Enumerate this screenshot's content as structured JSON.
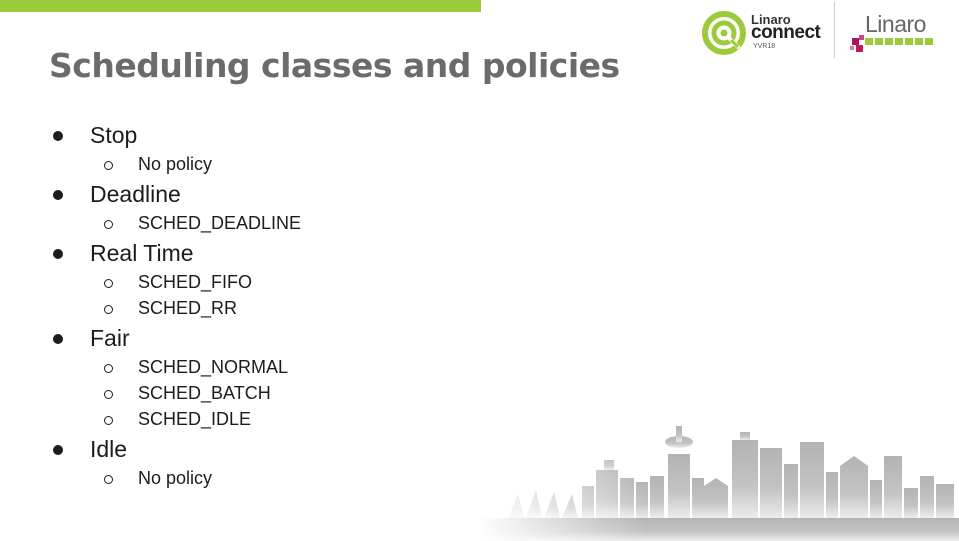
{
  "slide": {
    "title": "Scheduling classes and policies",
    "bullets": [
      {
        "label": "Stop",
        "sub": [
          "No policy"
        ]
      },
      {
        "label": "Deadline",
        "sub": [
          "SCHED_DEADLINE"
        ]
      },
      {
        "label": "Real Time",
        "sub": [
          "SCHED_FIFO",
          "SCHED_RR"
        ]
      },
      {
        "label": "Fair",
        "sub": [
          "SCHED_NORMAL",
          "SCHED_BATCH",
          "SCHED_IDLE"
        ]
      },
      {
        "label": "Idle",
        "sub": [
          "No policy"
        ]
      }
    ]
  },
  "logos": {
    "connect": {
      "word1": "Linaro",
      "word2": "connect",
      "event": "YVR18"
    },
    "linaro": {
      "word": "Linaro"
    }
  },
  "colors": {
    "accent_green": "#9bcb3b",
    "title_gray": "#6b6b6b",
    "linaro_magenta": "#a3195b"
  }
}
